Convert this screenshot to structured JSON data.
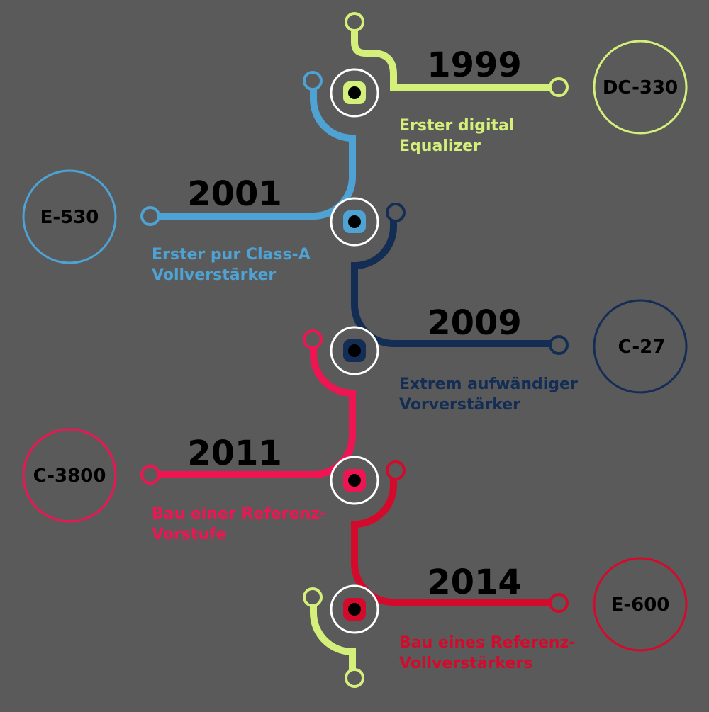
{
  "colors": {
    "background": "#5a5a5a",
    "lime": "#d4f07a",
    "blue": "#4fa3d4",
    "navy": "#142d55",
    "pink": "#ef1552",
    "red": "#d40a2c"
  },
  "timeline": [
    {
      "year": "1999",
      "model": "DC-330",
      "desc_line1": "Erster digital",
      "desc_line2": "Equalizer",
      "color": "#d4f07a"
    },
    {
      "year": "2001",
      "model": "E-530",
      "desc_line1": "Erster pur Class-A",
      "desc_line2": "Vollverstärker",
      "color": "#4fa3d4"
    },
    {
      "year": "2009",
      "model": "C-27",
      "desc_line1": "Extrem aufwändiger",
      "desc_line2": "Vorverstärker",
      "color": "#142d55"
    },
    {
      "year": "2011",
      "model": "C-3800",
      "desc_line1": "Bau einer Referenz-",
      "desc_line2": "Vorstufe",
      "color": "#ef1552"
    },
    {
      "year": "2014",
      "model": "E-600",
      "desc_line1": "Bau eines Referenz-",
      "desc_line2": "Vollverstärkers",
      "color": "#d40a2c"
    }
  ]
}
